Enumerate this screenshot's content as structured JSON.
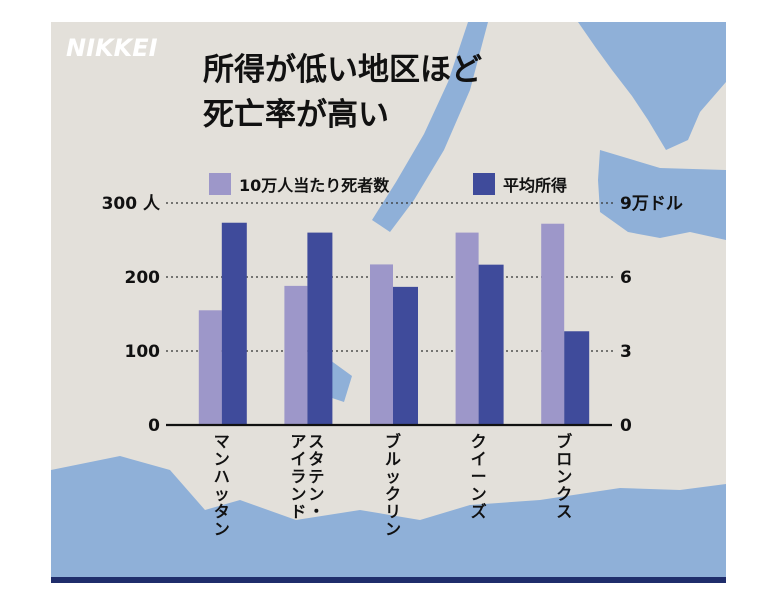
{
  "brand": {
    "logo_text": "NIKKEI"
  },
  "colors": {
    "background": "#e3e0da",
    "water": "#8fb0d8",
    "series_a": "#9d97c9",
    "series_b": "#3f4b9b",
    "axis": "#111111",
    "bottom_bar": "#1f2d6b"
  },
  "chart_data": {
    "type": "bar",
    "title_lines": [
      "所得が低い地区ほど",
      "死亡率が高い"
    ],
    "categories": [
      "マンハッタン",
      "スタテン・アイランド",
      "ブルックリン",
      "クイーンズ",
      "ブロンクス"
    ],
    "category_labels": [
      [
        "マンハッタン"
      ],
      [
        "スタテン・",
        "アイランド"
      ],
      [
        "ブルックリン"
      ],
      [
        "クイーンズ"
      ],
      [
        "ブロンクス"
      ]
    ],
    "series": [
      {
        "name": "10万人当たり死者数",
        "axis": "left",
        "values": [
          155,
          188,
          217,
          260,
          272
        ]
      },
      {
        "name": "平均所得",
        "axis": "right",
        "values": [
          8.2,
          7.8,
          5.6,
          6.5,
          3.8
        ]
      }
    ],
    "left_axis": {
      "ylim": [
        0,
        300
      ],
      "ticks": [
        "0",
        "100",
        "200",
        "300 人"
      ],
      "tick_values": [
        0,
        100,
        200,
        300
      ]
    },
    "right_axis": {
      "ylim": [
        0,
        9
      ],
      "ticks": [
        "0",
        "3",
        "6",
        "9万ドル"
      ],
      "tick_values": [
        0,
        3,
        6,
        9
      ]
    },
    "grid": "dotted",
    "legend_position": "top"
  }
}
